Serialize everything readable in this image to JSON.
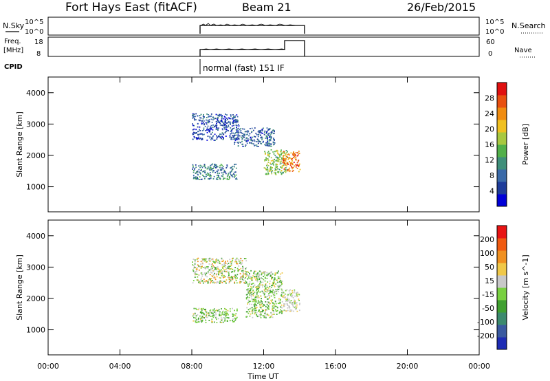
{
  "header": {
    "station": "Fort Hays East (fitACF)",
    "beam": "Beam 21",
    "date": "26/Feb/2015"
  },
  "status_panels": {
    "nsky_label": "N.Sky",
    "nsky_ticks": [
      "10^5",
      "10^0"
    ],
    "nsearch_label": "N.Search",
    "freq_label_1": "Freq.",
    "freq_label_2": "[MHz]",
    "freq_ticks": [
      "18",
      "8"
    ],
    "nave_ticks": [
      "60",
      "0"
    ],
    "nave_label": "Nave",
    "cpid_label": "CPID",
    "cpid_text": "normal (fast) 151 IF"
  },
  "colors": {
    "power_scale": [
      "#0000d8",
      "#1e3c9a",
      "#3a6aa8",
      "#3f8f7a",
      "#52b04a",
      "#a8c840",
      "#f0c020",
      "#f08c10",
      "#e85010",
      "#e01010"
    ],
    "velocity_scale": [
      "#e81414",
      "#f05a10",
      "#f09020",
      "#f0c848",
      "#c8c8c8",
      "#78d040",
      "#40a030",
      "#3c8a6e",
      "#3a5aa0",
      "#1e2cb4"
    ]
  },
  "chart_data": [
    {
      "type": "heatmap",
      "name": "power",
      "ylabel": "Slant Range [km]",
      "yticks": [
        1000,
        2000,
        3000,
        4000
      ],
      "ylim": [
        200,
        4500
      ],
      "xlim": [
        0,
        24
      ],
      "xticks": [
        "00:00",
        "04:00",
        "08:00",
        "12:00",
        "16:00",
        "20:00",
        "00:00"
      ],
      "colorbar_label": "Power [dB]",
      "colorbar_ticks": [
        "4",
        "8",
        "12",
        "16",
        "20",
        "24",
        "28"
      ],
      "colorbar_range": [
        0,
        32
      ],
      "regions": [
        {
          "t": [
            8.0,
            10.6
          ],
          "r": [
            2500,
            3350
          ],
          "level": 0.15
        },
        {
          "t": [
            10.3,
            12.6
          ],
          "r": [
            2300,
            2900
          ],
          "level": 0.2
        },
        {
          "t": [
            12.0,
            13.3
          ],
          "r": [
            1400,
            2200
          ],
          "level": 0.5
        },
        {
          "t": [
            13.0,
            14.0
          ],
          "r": [
            1500,
            2150
          ],
          "level": 0.8
        },
        {
          "t": [
            8.0,
            10.5
          ],
          "r": [
            1250,
            1750
          ],
          "level": 0.28
        }
      ]
    },
    {
      "type": "heatmap",
      "name": "velocity",
      "xlabel": "Time UT",
      "ylabel": "Slant Range [km]",
      "yticks": [
        1000,
        2000,
        3000,
        4000
      ],
      "ylim": [
        200,
        4500
      ],
      "xlim": [
        0,
        24
      ],
      "xticks": [
        "00:00",
        "04:00",
        "08:00",
        "12:00",
        "16:00",
        "20:00",
        "00:00"
      ],
      "colorbar_label": "Velocity [m s^-1]",
      "colorbar_ticks": [
        "200",
        "100",
        "50",
        "15",
        "-15",
        "-50",
        "-100",
        "-200"
      ],
      "regions": [
        {
          "t": [
            8.0,
            11.0
          ],
          "r": [
            2500,
            3300
          ],
          "level": "mixed"
        },
        {
          "t": [
            11.0,
            13.0
          ],
          "r": [
            1400,
            2900
          ],
          "level": "green"
        },
        {
          "t": [
            13.0,
            14.0
          ],
          "r": [
            1600,
            2300
          ],
          "level": "gray"
        },
        {
          "t": [
            8.0,
            10.5
          ],
          "r": [
            1250,
            1700
          ],
          "level": "green"
        }
      ]
    }
  ]
}
